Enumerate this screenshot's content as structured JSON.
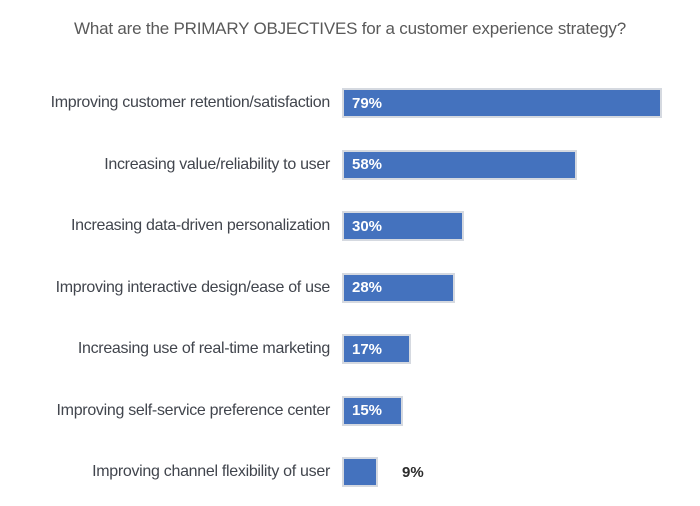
{
  "title": "What are the PRIMARY OBJECTIVES for a customer experience strategy?",
  "chart_data": {
    "type": "bar",
    "orientation": "horizontal",
    "title": "What are the PRIMARY OBJECTIVES for a customer experience strategy?",
    "categories": [
      "Improving customer retention/satisfaction",
      "Increasing value/reliability to user",
      "Increasing data-driven personalization",
      "Improving interactive design/ease of use",
      "Increasing use of real-time marketing",
      "Improving self-service preference center",
      "Improving channel flexibility of user"
    ],
    "values": [
      79,
      58,
      30,
      28,
      17,
      15,
      9
    ],
    "value_labels": [
      "79%",
      "58%",
      "30%",
      "28%",
      "17%",
      "15%",
      "9%"
    ],
    "value_label_position": [
      "inside",
      "inside",
      "inside",
      "inside",
      "inside",
      "inside",
      "outside"
    ],
    "xlim": [
      0,
      100
    ],
    "grid": false,
    "legend": false,
    "bar_color": "#4472be",
    "bar_border_color": "#d5d9e0",
    "title_color": "#595959",
    "label_color": "#41454d",
    "value_color_inside": "#ffffff",
    "value_color_outside": "#2b2b2b"
  }
}
